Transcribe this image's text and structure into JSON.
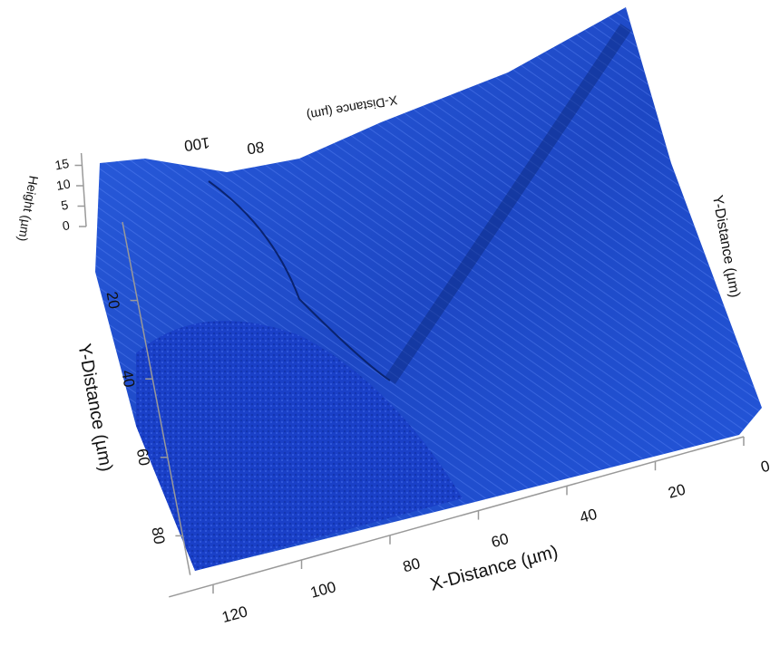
{
  "chart_data": {
    "type": "surface",
    "xlabel": "X-Distance (µm)",
    "ylabel": "Y-Distance (µm)",
    "zlabel": "Height (µm)",
    "xlim": [
      0,
      130
    ],
    "xticks": [
      0,
      20,
      40,
      60,
      80,
      100,
      120
    ],
    "ylim": [
      0,
      90
    ],
    "yticks": [
      20,
      40,
      60,
      80
    ],
    "zlim": [
      0,
      18
    ],
    "zticks": [
      0,
      5,
      10,
      15
    ],
    "color": "#1f4fd6"
  }
}
